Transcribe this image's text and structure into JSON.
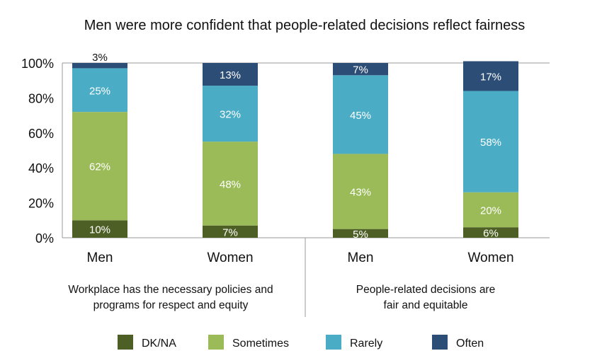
{
  "chart_data": {
    "type": "bar",
    "stacked": true,
    "title": "Men were more confident that people-related decisions reflect fairness",
    "ylim": [
      0,
      100
    ],
    "yticks": [
      "0%",
      "20%",
      "40%",
      "60%",
      "80%",
      "100%"
    ],
    "categories": [
      "Men",
      "Women",
      "Men",
      "Women"
    ],
    "groups": [
      {
        "label_lines": [
          "Workplace has the necessary policies and",
          "programs for respect and equity"
        ],
        "categories": [
          0,
          1
        ]
      },
      {
        "label_lines": [
          "People-related decisions are",
          "fair and equitable"
        ],
        "categories": [
          2,
          3
        ]
      }
    ],
    "series": [
      {
        "name": "DK/NA",
        "color": "#4e5f26",
        "values": [
          10,
          7,
          5,
          6
        ],
        "labels": [
          "10%",
          "7%",
          "5%",
          "6%"
        ],
        "label_color": "#ffffff"
      },
      {
        "name": "Sometimes",
        "color": "#9bbb59",
        "values": [
          62,
          48,
          43,
          20
        ],
        "labels": [
          "62%",
          "48%",
          "43%",
          "20%"
        ],
        "label_color": "#ffffff"
      },
      {
        "name": "Rarely",
        "color": "#4bacc6",
        "values": [
          25,
          32,
          45,
          58
        ],
        "labels": [
          "25%",
          "32%",
          "45%",
          "58%"
        ],
        "label_color": "#ffffff"
      },
      {
        "name": "Often",
        "color": "#2c4d75",
        "values": [
          3,
          13,
          7,
          17
        ],
        "labels": [
          "3%",
          "13%",
          "7%",
          "17%"
        ],
        "label_color": "#ffffff"
      }
    ],
    "legend_position": "bottom",
    "grid": false
  }
}
